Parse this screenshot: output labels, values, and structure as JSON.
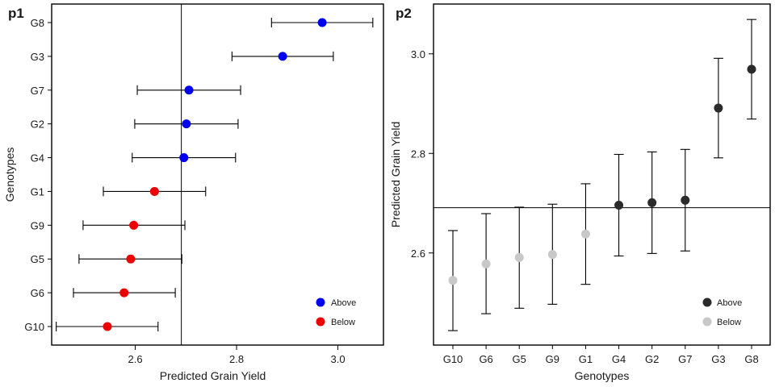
{
  "chart_data": [
    {
      "type": "scatter",
      "panel_label": "p1",
      "orientation": "horizontal",
      "xlabel": "Predicted Grain Yield",
      "ylabel": "Genotypes",
      "xlim": [
        2.435,
        3.09
      ],
      "xticks": [
        2.6,
        2.8,
        3.0
      ],
      "xtick_labels": [
        "2.6",
        "2.8",
        "3.0"
      ],
      "reference_line": 2.691,
      "categories": [
        "G10",
        "G6",
        "G5",
        "G9",
        "G1",
        "G4",
        "G2",
        "G7",
        "G3",
        "G8"
      ],
      "values": [
        2.545,
        2.578,
        2.591,
        2.597,
        2.638,
        2.696,
        2.701,
        2.706,
        2.891,
        2.969
      ],
      "lower": [
        2.444,
        2.478,
        2.489,
        2.497,
        2.537,
        2.594,
        2.599,
        2.604,
        2.791,
        2.869
      ],
      "upper": [
        2.645,
        2.679,
        2.692,
        2.698,
        2.739,
        2.798,
        2.803,
        2.808,
        2.991,
        3.069
      ],
      "groups": [
        "Below",
        "Below",
        "Below",
        "Below",
        "Below",
        "Above",
        "Above",
        "Above",
        "Above",
        "Above"
      ],
      "legend": [
        {
          "label": "Above",
          "color": "#0000ee"
        },
        {
          "label": "Below",
          "color": "#ee0000"
        }
      ],
      "legend_position": "bottom-right",
      "grid": false
    },
    {
      "type": "scatter",
      "panel_label": "p2",
      "orientation": "vertical",
      "xlabel": "Genotypes",
      "ylabel": "Predicted Grain Yield",
      "ylim": [
        2.415,
        3.1
      ],
      "yticks": [
        2.6,
        2.8,
        3.0
      ],
      "ytick_labels": [
        "2.6",
        "2.8",
        "3.0"
      ],
      "reference_line": 2.691,
      "categories": [
        "G10",
        "G6",
        "G5",
        "G9",
        "G1",
        "G4",
        "G2",
        "G7",
        "G3",
        "G8"
      ],
      "values": [
        2.545,
        2.578,
        2.591,
        2.597,
        2.638,
        2.696,
        2.701,
        2.706,
        2.891,
        2.969
      ],
      "lower": [
        2.444,
        2.478,
        2.489,
        2.497,
        2.537,
        2.594,
        2.599,
        2.604,
        2.791,
        2.869
      ],
      "upper": [
        2.645,
        2.679,
        2.692,
        2.698,
        2.739,
        2.798,
        2.803,
        2.808,
        2.991,
        3.069
      ],
      "groups": [
        "Below",
        "Below",
        "Below",
        "Below",
        "Below",
        "Above",
        "Above",
        "Above",
        "Above",
        "Above"
      ],
      "legend": [
        {
          "label": "Above",
          "color": "#2b2b2b"
        },
        {
          "label": "Below",
          "color": "#c8c8c8"
        }
      ],
      "legend_position": "bottom-right",
      "grid": false
    }
  ]
}
